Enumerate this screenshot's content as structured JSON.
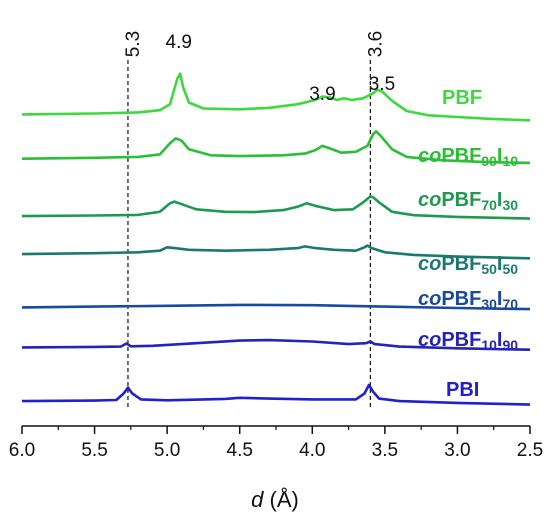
{
  "chart_data": {
    "type": "line",
    "xlabel_symbol": "d",
    "xlabel_unit": " (Å)",
    "xlim": [
      6.0,
      2.5
    ],
    "x_ticks": [
      "6.0",
      "5.5",
      "5.0",
      "4.5",
      "4.0",
      "3.5",
      "3.0",
      "2.5"
    ],
    "reference_lines": [
      {
        "x": 5.27,
        "label": "5.3"
      },
      {
        "x": 3.6,
        "label": "3.6"
      }
    ],
    "peak_annotations": [
      {
        "x": 4.92,
        "label": "4.9"
      },
      {
        "x": 3.93,
        "label": "3.9"
      },
      {
        "x": 3.52,
        "label": "3.5"
      }
    ],
    "series": [
      {
        "name": "PBF",
        "label_parts": [
          {
            "t": "PBF",
            "style": "normal"
          }
        ],
        "color": "#3fd93f",
        "points": [
          [
            6.0,
            0.08
          ],
          [
            5.5,
            0.085
          ],
          [
            5.2,
            0.092
          ],
          [
            5.05,
            0.105
          ],
          [
            4.98,
            0.14
          ],
          [
            4.93,
            0.29
          ],
          [
            4.91,
            0.32
          ],
          [
            4.89,
            0.24
          ],
          [
            4.85,
            0.15
          ],
          [
            4.75,
            0.115
          ],
          [
            4.5,
            0.11
          ],
          [
            4.3,
            0.118
          ],
          [
            4.1,
            0.14
          ],
          [
            3.98,
            0.165
          ],
          [
            3.93,
            0.185
          ],
          [
            3.88,
            0.18
          ],
          [
            3.83,
            0.165
          ],
          [
            3.78,
            0.175
          ],
          [
            3.73,
            0.165
          ],
          [
            3.65,
            0.175
          ],
          [
            3.58,
            0.205
          ],
          [
            3.55,
            0.225
          ],
          [
            3.52,
            0.215
          ],
          [
            3.45,
            0.16
          ],
          [
            3.35,
            0.1
          ],
          [
            3.2,
            0.075
          ],
          [
            3.0,
            0.065
          ],
          [
            2.8,
            0.055
          ],
          [
            2.5,
            0.045
          ]
        ]
      },
      {
        "name": "coPBF90I10",
        "label_parts": [
          {
            "t": "co",
            "style": "italic"
          },
          {
            "t": "PBF",
            "style": "normal"
          },
          {
            "t": "90",
            "style": "sub"
          },
          {
            "t": "I",
            "style": "normal"
          },
          {
            "t": "10",
            "style": "sub"
          }
        ],
        "color": "#2bbf35",
        "points": [
          [
            6.0,
            0.055
          ],
          [
            5.5,
            0.06
          ],
          [
            5.2,
            0.065
          ],
          [
            5.05,
            0.08
          ],
          [
            4.98,
            0.145
          ],
          [
            4.94,
            0.175
          ],
          [
            4.9,
            0.16
          ],
          [
            4.85,
            0.11
          ],
          [
            4.7,
            0.075
          ],
          [
            4.5,
            0.07
          ],
          [
            4.2,
            0.075
          ],
          [
            4.05,
            0.085
          ],
          [
            3.98,
            0.105
          ],
          [
            3.93,
            0.13
          ],
          [
            3.88,
            0.115
          ],
          [
            3.8,
            0.09
          ],
          [
            3.7,
            0.095
          ],
          [
            3.62,
            0.13
          ],
          [
            3.58,
            0.2
          ],
          [
            3.56,
            0.215
          ],
          [
            3.53,
            0.19
          ],
          [
            3.45,
            0.11
          ],
          [
            3.35,
            0.065
          ],
          [
            3.1,
            0.045
          ],
          [
            2.8,
            0.035
          ],
          [
            2.5,
            0.03
          ]
        ]
      },
      {
        "name": "coPBF70I30",
        "label_parts": [
          {
            "t": "co",
            "style": "italic"
          },
          {
            "t": "PBF",
            "style": "normal"
          },
          {
            "t": "70",
            "style": "sub"
          },
          {
            "t": "I",
            "style": "normal"
          },
          {
            "t": "30",
            "style": "sub"
          }
        ],
        "color": "#1e9a50",
        "points": [
          [
            6.0,
            0.035
          ],
          [
            5.5,
            0.038
          ],
          [
            5.2,
            0.042
          ],
          [
            5.05,
            0.06
          ],
          [
            4.98,
            0.11
          ],
          [
            4.95,
            0.12
          ],
          [
            4.9,
            0.105
          ],
          [
            4.8,
            0.075
          ],
          [
            4.6,
            0.06
          ],
          [
            4.4,
            0.058
          ],
          [
            4.2,
            0.07
          ],
          [
            4.1,
            0.09
          ],
          [
            4.04,
            0.11
          ],
          [
            3.98,
            0.095
          ],
          [
            3.85,
            0.07
          ],
          [
            3.72,
            0.075
          ],
          [
            3.65,
            0.115
          ],
          [
            3.6,
            0.15
          ],
          [
            3.58,
            0.145
          ],
          [
            3.54,
            0.115
          ],
          [
            3.45,
            0.06
          ],
          [
            3.3,
            0.04
          ],
          [
            3.0,
            0.03
          ],
          [
            2.5,
            0.02
          ]
        ]
      },
      {
        "name": "coPBF50I50",
        "label_parts": [
          {
            "t": "co",
            "style": "italic"
          },
          {
            "t": "PBF",
            "style": "normal"
          },
          {
            "t": "50",
            "style": "sub"
          },
          {
            "t": "I",
            "style": "normal"
          },
          {
            "t": "50",
            "style": "sub"
          }
        ],
        "color": "#1a7a70",
        "points": [
          [
            6.0,
            0.035
          ],
          [
            5.5,
            0.04
          ],
          [
            5.2,
            0.045
          ],
          [
            5.05,
            0.055
          ],
          [
            5.0,
            0.075
          ],
          [
            4.95,
            0.07
          ],
          [
            4.85,
            0.06
          ],
          [
            4.6,
            0.055
          ],
          [
            4.3,
            0.06
          ],
          [
            4.1,
            0.07
          ],
          [
            4.05,
            0.08
          ],
          [
            3.98,
            0.07
          ],
          [
            3.85,
            0.06
          ],
          [
            3.7,
            0.055
          ],
          [
            3.64,
            0.075
          ],
          [
            3.62,
            0.085
          ],
          [
            3.59,
            0.07
          ],
          [
            3.5,
            0.045
          ],
          [
            3.3,
            0.03
          ],
          [
            3.0,
            0.02
          ],
          [
            2.5,
            0.01
          ]
        ]
      },
      {
        "name": "coPBF30I70",
        "label_parts": [
          {
            "t": "co",
            "style": "italic"
          },
          {
            "t": "PBF",
            "style": "normal"
          },
          {
            "t": "30",
            "style": "sub"
          },
          {
            "t": "I",
            "style": "normal"
          },
          {
            "t": "70",
            "style": "sub"
          }
        ],
        "color": "#1a4aa0",
        "points": [
          [
            6.0,
            0.015
          ],
          [
            5.5,
            0.02
          ],
          [
            5.0,
            0.025
          ],
          [
            4.5,
            0.03
          ],
          [
            4.0,
            0.028
          ],
          [
            3.5,
            0.02
          ],
          [
            3.0,
            0.012
          ],
          [
            2.5,
            0.005
          ]
        ]
      },
      {
        "name": "coPBF10I90",
        "label_parts": [
          {
            "t": "co",
            "style": "italic"
          },
          {
            "t": "PBF",
            "style": "normal"
          },
          {
            "t": "10",
            "style": "sub"
          },
          {
            "t": "I",
            "style": "normal"
          },
          {
            "t": "90",
            "style": "sub"
          }
        ],
        "color": "#2424b8",
        "points": [
          [
            6.0,
            0.015
          ],
          [
            5.5,
            0.018
          ],
          [
            5.32,
            0.02
          ],
          [
            5.28,
            0.038
          ],
          [
            5.25,
            0.022
          ],
          [
            5.1,
            0.025
          ],
          [
            4.8,
            0.04
          ],
          [
            4.5,
            0.055
          ],
          [
            4.3,
            0.058
          ],
          [
            4.0,
            0.05
          ],
          [
            3.75,
            0.035
          ],
          [
            3.63,
            0.04
          ],
          [
            3.6,
            0.05
          ],
          [
            3.57,
            0.035
          ],
          [
            3.4,
            0.02
          ],
          [
            3.0,
            0.01
          ],
          [
            2.5,
            0.002
          ]
        ]
      },
      {
        "name": "PBI",
        "label_parts": [
          {
            "t": "PBI",
            "style": "normal"
          }
        ],
        "color": "#2020d0",
        "points": [
          [
            6.0,
            0.005
          ],
          [
            5.5,
            0.008
          ],
          [
            5.35,
            0.012
          ],
          [
            5.3,
            0.05
          ],
          [
            5.27,
            0.085
          ],
          [
            5.24,
            0.05
          ],
          [
            5.18,
            0.015
          ],
          [
            5.0,
            0.01
          ],
          [
            4.6,
            0.018
          ],
          [
            4.5,
            0.025
          ],
          [
            4.3,
            0.02
          ],
          [
            4.0,
            0.015
          ],
          [
            3.7,
            0.015
          ],
          [
            3.64,
            0.05
          ],
          [
            3.61,
            0.1
          ],
          [
            3.58,
            0.06
          ],
          [
            3.54,
            0.02
          ],
          [
            3.4,
            0.005
          ],
          [
            3.0,
            -0.005
          ],
          [
            2.5,
            -0.015
          ]
        ]
      }
    ]
  }
}
